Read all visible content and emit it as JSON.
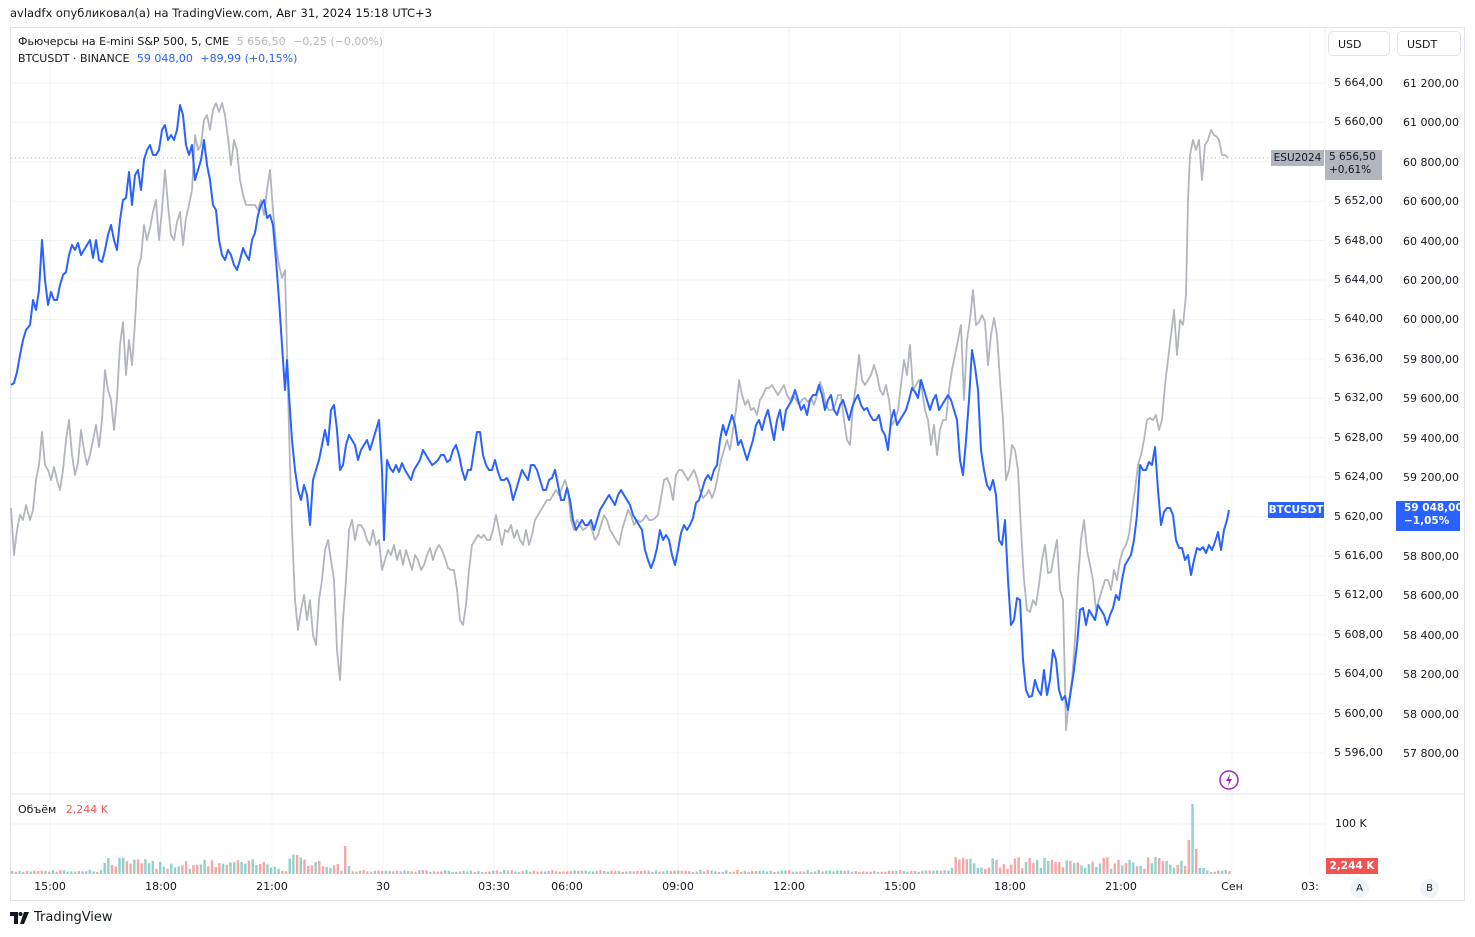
{
  "header": {
    "publisher_line": "avladfx опубликовал(а) на TradingView.com, Авг 31, 2024 15:18 UTC+3"
  },
  "legend": {
    "series1": {
      "name": "Фьючерсы на E-mini S&P 500, 5, CME",
      "price": "5 656,50",
      "change": "−0,25 (−0,00%)"
    },
    "series2": {
      "name": "BTCUSDT · BINANCE",
      "price": "59 048,00",
      "change": "+89,99 (+0,15%)"
    }
  },
  "axes": {
    "left_currency_button": "USD",
    "right_currency_button": "USDT",
    "usd_ticks": [
      "5 664,00",
      "5 660,00",
      "5 652,00",
      "5 648,00",
      "5 644,00",
      "5 640,00",
      "5 636,00",
      "5 632,00",
      "5 628,00",
      "5 624,00",
      "5 620,00",
      "5 616,00",
      "5 612,00",
      "5 608,00",
      "5 604,00",
      "5 600,00",
      "5 596,00"
    ],
    "usdt_ticks": [
      "61 200,00",
      "61 000,00",
      "60 800,00",
      "60 600,00",
      "60 400,00",
      "60 200,00",
      "60 000,00",
      "59 800,00",
      "59 600,00",
      "59 400,00",
      "59 200,00",
      "58 800,00",
      "58 600,00",
      "58 400,00",
      "58 200,00",
      "58 000,00",
      "57 800,00"
    ],
    "x_ticks": [
      "15:00",
      "18:00",
      "21:00",
      "30",
      "03:30",
      "06:00",
      "09:00",
      "12:00",
      "15:00",
      "18:00",
      "21:00",
      "Сен",
      "03:"
    ],
    "volume_tick": "100 K",
    "scale_buttons": [
      "A",
      "B"
    ]
  },
  "price_tags": {
    "es": {
      "symbol": "ESU2024",
      "price": "5 656,50",
      "change": "+0,61%"
    },
    "btc": {
      "symbol": "BTCUSDT",
      "price": "59 048,00",
      "change": "−1,05%"
    }
  },
  "volume": {
    "label": "Объём",
    "value": "2,244 K",
    "tag": "2,244 K"
  },
  "footer": {
    "brand": "TradingView"
  },
  "colors": {
    "btc_line": "#2962ff",
    "es_line": "#b2b5be",
    "volume_up": "#92d1cb",
    "volume_down": "#f5a6a6",
    "volume_tag": "#f05350",
    "grid": "#f0f3fa",
    "alert_icon": "#9c27b0"
  },
  "chart_data": {
    "type": "line",
    "title": "Фьючерсы на E-mini S&P 500 (ESU2024, 5m, CME) vs BTCUSDT (BINANCE)",
    "xlabel": "",
    "ylabel_left": "USD",
    "ylabel_right": "USDT",
    "x": [
      "29 14:00",
      "29 15:00",
      "29 16:00",
      "29 17:00",
      "29 18:00",
      "29 19:00",
      "29 20:00",
      "29 21:00",
      "29 22:00",
      "29 23:00",
      "30 00:00",
      "30 01:00",
      "30 02:00",
      "30 03:00",
      "30 04:00",
      "30 05:00",
      "30 06:00",
      "30 07:00",
      "30 08:00",
      "30 09:00",
      "30 10:00",
      "30 11:00",
      "30 12:00",
      "30 13:00",
      "30 14:00",
      "30 15:00",
      "30 16:00",
      "30 17:00",
      "30 18:00",
      "30 19:00",
      "30 20:00",
      "30 21:00",
      "30 22:00",
      "30 23:00",
      "31 00:00"
    ],
    "series": [
      {
        "name": "ESU2024 (USD, left axis)",
        "values": [
          5621,
          5624,
          5627,
          5630,
          5646,
          5654,
          5660,
          5651,
          5640,
          5610,
          5613,
          5616,
          5615,
          5611,
          5613,
          5616,
          5619,
          5617,
          5618,
          5622,
          5631,
          5631,
          5632,
          5629,
          5633,
          5632,
          5643,
          5635,
          5620,
          5605,
          5600,
          5617,
          5627,
          5656,
          5657
        ]
      },
      {
        "name": "BTCUSDT (USDT, right axis)",
        "values": [
          59650,
          60150,
          60350,
          60350,
          60700,
          61100,
          60700,
          60150,
          59700,
          58900,
          59400,
          59380,
          59300,
          59200,
          59100,
          58950,
          59000,
          59000,
          58850,
          59300,
          59500,
          59550,
          59600,
          59400,
          59550,
          59500,
          59100,
          58500,
          58050,
          58150,
          58600,
          58800,
          59250,
          58850,
          59048
        ]
      }
    ],
    "ylim_left": [
      5594,
      5667
    ],
    "ylim_right": [
      57700,
      61350
    ],
    "volume_series": {
      "name": "Объём",
      "last": "2,244 K",
      "peak_approx": 125000,
      "axis_tick": "100 K"
    },
    "grid": true,
    "legend_position": "top-left"
  }
}
